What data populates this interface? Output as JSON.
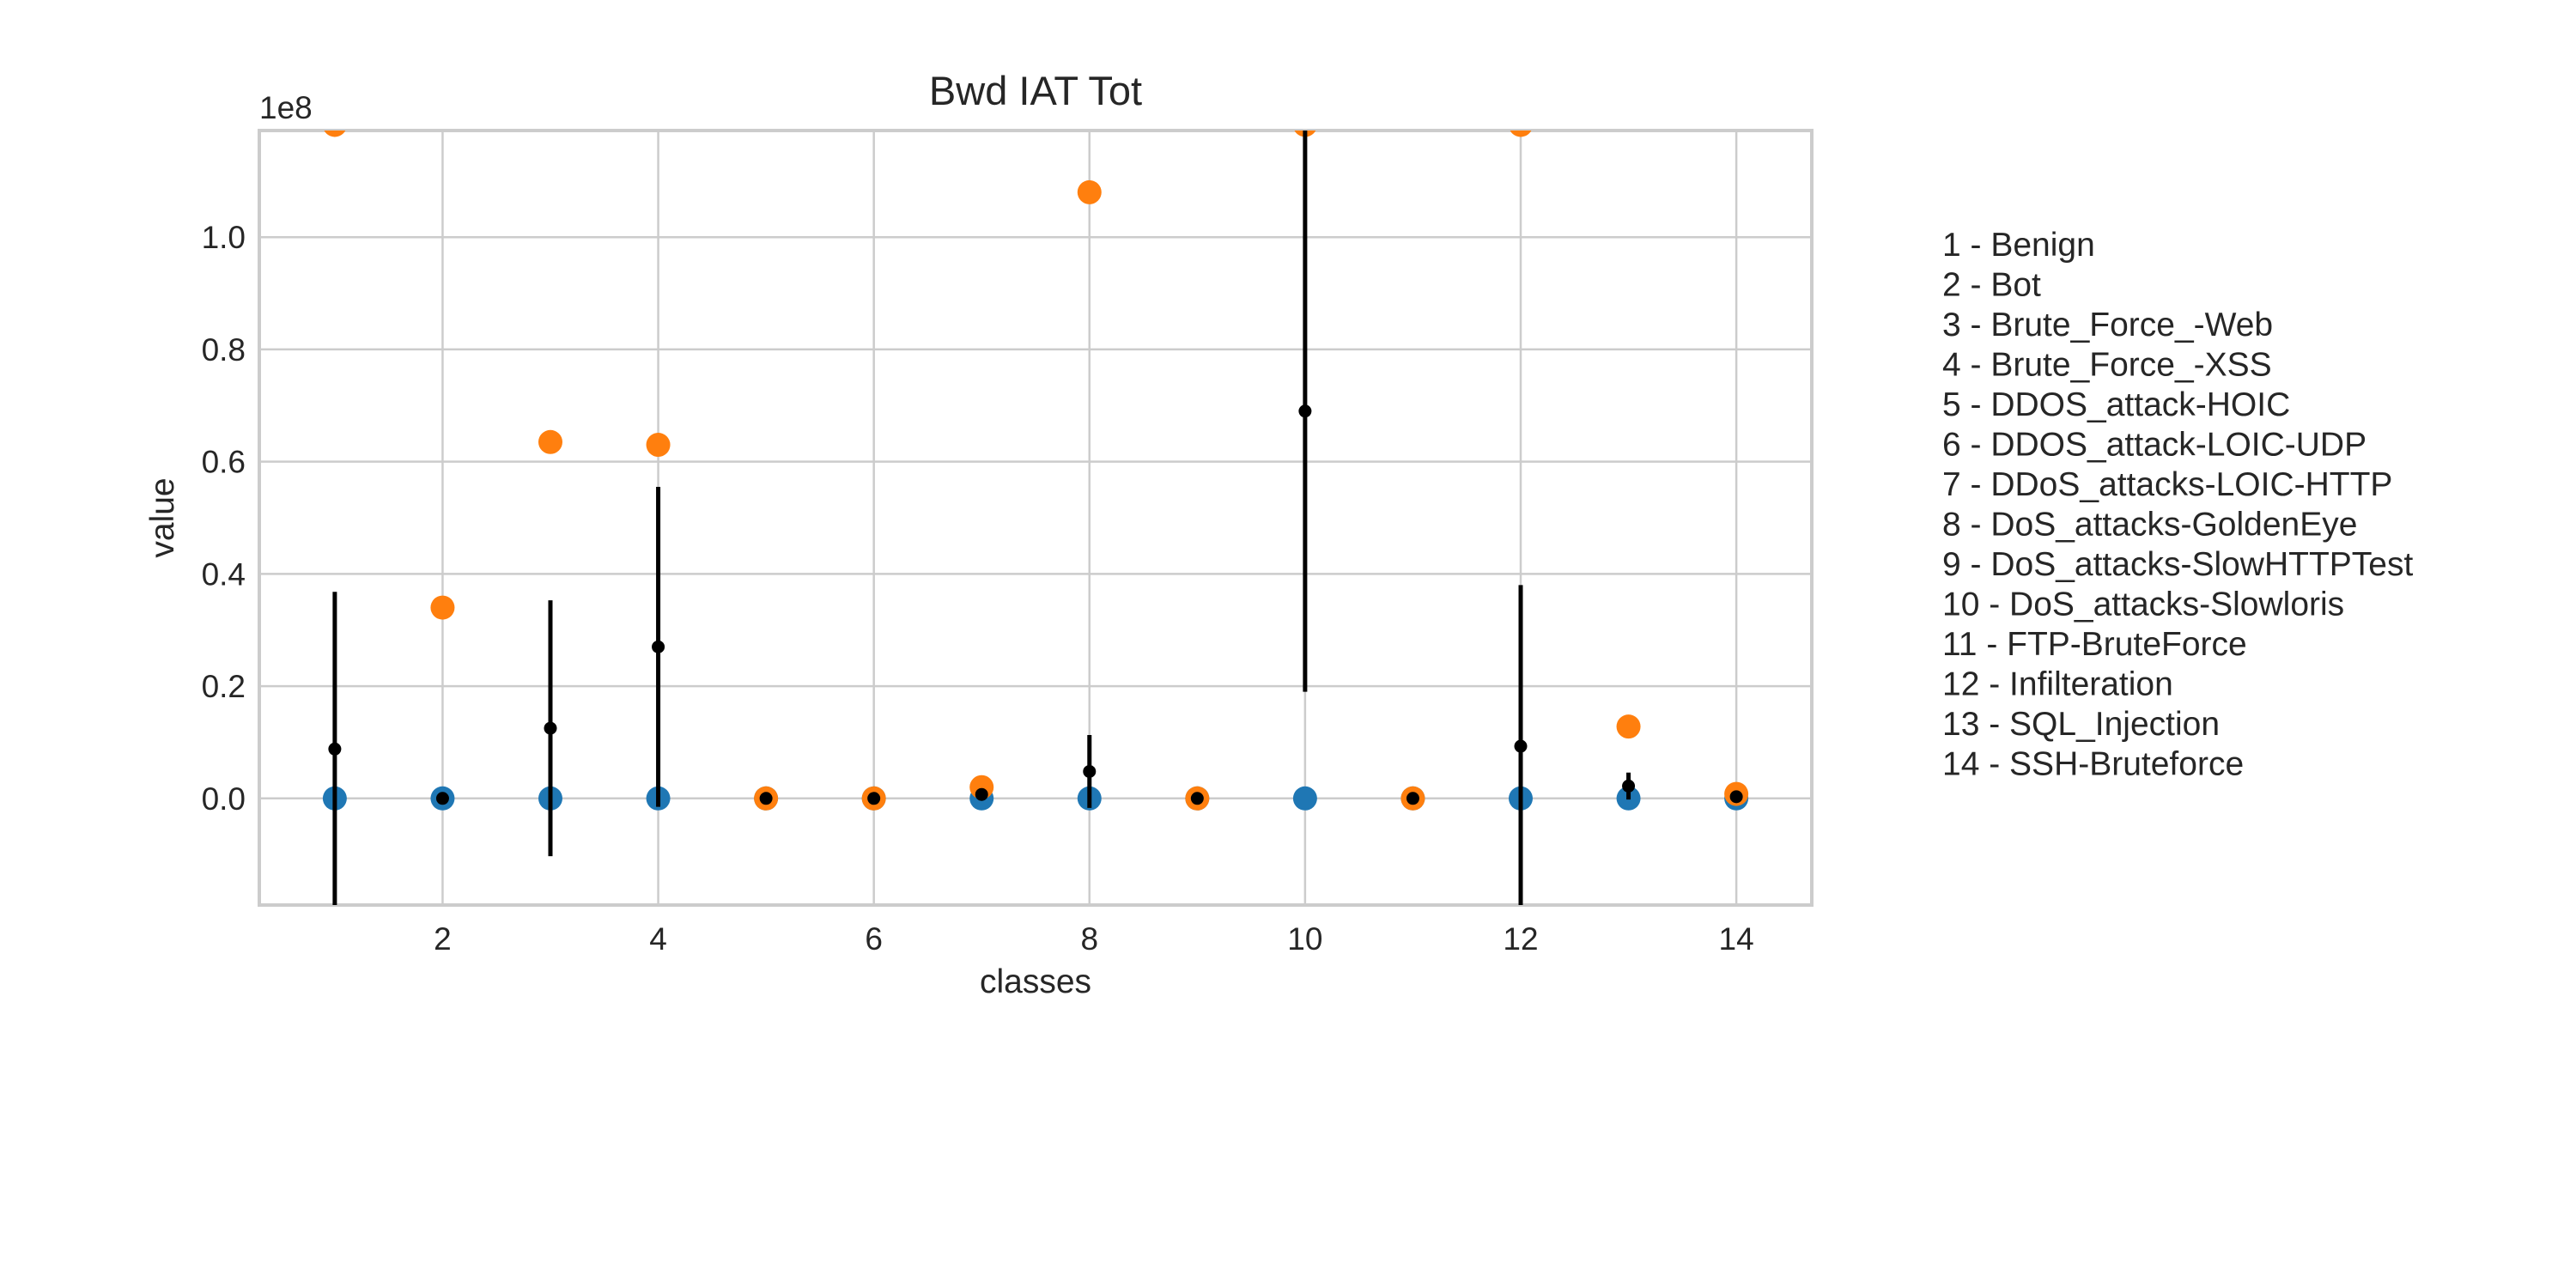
{
  "chart_data": {
    "type": "scatter",
    "title": "Bwd IAT Tot",
    "xlabel": "classes",
    "ylabel": "value",
    "y_scale_label": "1e8",
    "y_multiplier": 100000000,
    "xlim": [
      0.3,
      14.7
    ],
    "ylim": [
      -0.19,
      1.19
    ],
    "x_ticks": [
      2,
      4,
      6,
      8,
      10,
      12,
      14
    ],
    "y_ticks": [
      0.0,
      0.2,
      0.4,
      0.6,
      0.8,
      1.0
    ],
    "y_tick_labels": [
      "0.0",
      "0.2",
      "0.4",
      "0.6",
      "0.8",
      "1.0"
    ],
    "grid": true,
    "legend_placement": "right",
    "legend": [
      "1 - Benign",
      "2 - Bot",
      "3 - Brute_Force_-Web",
      "4 - Brute_Force_-XSS",
      "5 - DDOS_attack-HOIC",
      "6 - DDOS_attack-LOIC-UDP",
      "7 - DDoS_attacks-LOIC-HTTP",
      "8 - DoS_attacks-GoldenEye",
      "9 - DoS_attacks-SlowHTTPTest",
      "10 - DoS_attacks-Slowloris",
      "11 - FTP-BruteForce",
      "12 - Infilteration",
      "13 - SQL_Injection",
      "14 - SSH-Bruteforce"
    ],
    "series": [
      {
        "role": "min",
        "color": "#1f77b4",
        "x": [
          1,
          2,
          3,
          4,
          5,
          6,
          7,
          8,
          9,
          10,
          11,
          12,
          13,
          14
        ],
        "values": [
          0,
          0,
          0,
          0,
          0,
          0,
          0,
          0,
          0,
          0,
          0,
          0,
          0,
          0
        ]
      },
      {
        "role": "max",
        "color": "#ff7f0e",
        "x": [
          1,
          2,
          3,
          4,
          5,
          6,
          7,
          8,
          9,
          10,
          11,
          12,
          13,
          14
        ],
        "values": [
          1.2,
          0.34,
          0.635,
          0.63,
          0.0,
          0.0,
          0.02,
          1.08,
          0.0,
          1.2,
          0.0,
          1.2,
          0.128,
          0.008
        ]
      },
      {
        "role": "mean_std",
        "color": "#000000",
        "x": [
          1,
          2,
          3,
          4,
          5,
          6,
          7,
          8,
          9,
          10,
          11,
          12,
          13,
          14
        ],
        "values": [
          0.088,
          0.0,
          0.125,
          0.27,
          0.0,
          0.0,
          0.007,
          0.048,
          0.0,
          0.69,
          0.0,
          0.093,
          0.022,
          0.003
        ],
        "error": [
          0.28,
          0.0,
          0.228,
          0.285,
          0.0,
          0.0,
          0.0,
          0.065,
          0.0,
          0.5,
          0.0,
          0.287,
          0.024,
          0.0
        ]
      }
    ]
  }
}
